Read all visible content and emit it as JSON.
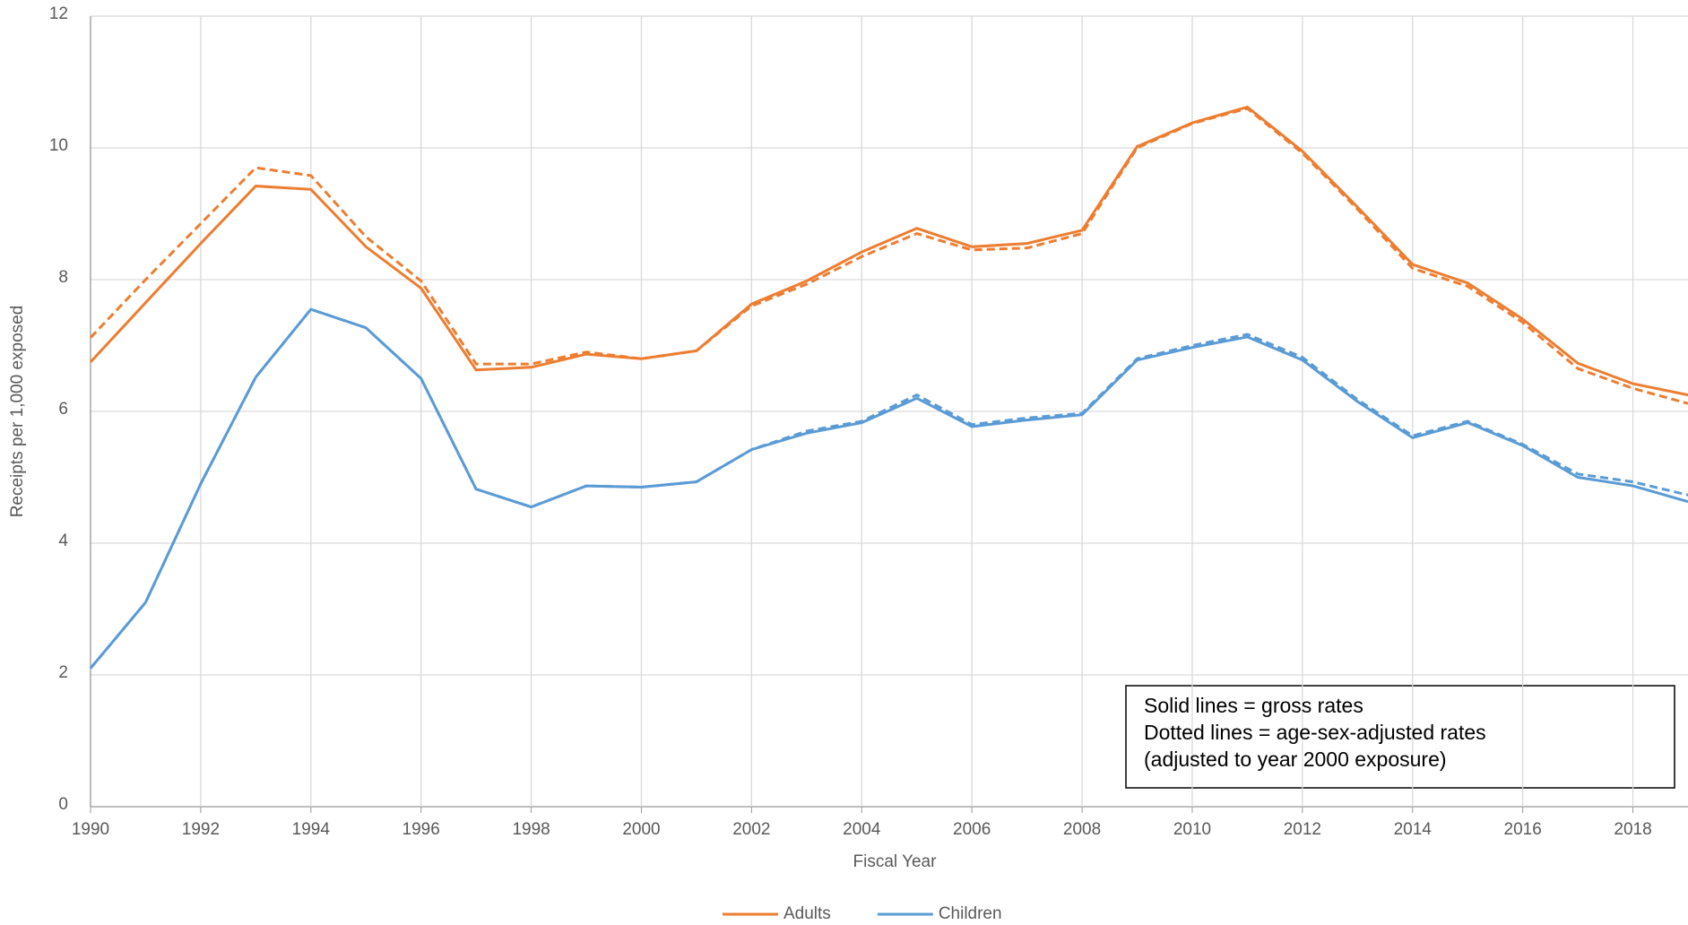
{
  "chart_data": {
    "type": "line",
    "x_label": "Fiscal Year",
    "y_label": "Receipts per 1,000 exposed",
    "x": [
      1990,
      1991,
      1992,
      1993,
      1994,
      1995,
      1996,
      1997,
      1998,
      1999,
      2000,
      2001,
      2002,
      2003,
      2004,
      2005,
      2006,
      2007,
      2008,
      2009,
      2010,
      2011,
      2012,
      2013,
      2014,
      2015,
      2016,
      2017,
      2018,
      2019
    ],
    "series": [
      {
        "name": "Adults",
        "color": "#ed7d31",
        "values": [
          6.75,
          7.65,
          8.55,
          9.42,
          9.37,
          8.5,
          7.87,
          6.63,
          6.67,
          6.87,
          6.8,
          6.92,
          7.63,
          7.98,
          8.42,
          8.78,
          8.5,
          8.55,
          8.75,
          10.02,
          10.38,
          10.62,
          9.95,
          9.1,
          8.23,
          7.95,
          7.4,
          6.73,
          6.42,
          6.25
        ],
        "adjusted_values": [
          7.12,
          8.0,
          8.85,
          9.7,
          9.58,
          8.65,
          7.98,
          6.72,
          6.72,
          6.9,
          6.8,
          6.92,
          7.6,
          7.93,
          8.35,
          8.7,
          8.45,
          8.48,
          8.7,
          10.0,
          10.37,
          10.6,
          9.92,
          9.07,
          8.17,
          7.9,
          7.35,
          6.65,
          6.35,
          6.12
        ]
      },
      {
        "name": "Children",
        "color": "#5b9bd5",
        "values": [
          2.1,
          3.1,
          4.9,
          6.52,
          7.55,
          7.27,
          6.5,
          4.82,
          4.55,
          4.87,
          4.85,
          4.93,
          5.42,
          5.67,
          5.83,
          6.2,
          5.77,
          5.87,
          5.95,
          6.78,
          6.97,
          7.13,
          6.78,
          6.15,
          5.6,
          5.83,
          5.48,
          5.0,
          4.87,
          4.63
        ],
        "adjusted_values": [
          2.1,
          3.1,
          4.9,
          6.52,
          7.55,
          7.27,
          6.5,
          4.82,
          4.55,
          4.87,
          4.85,
          4.93,
          5.42,
          5.7,
          5.85,
          6.25,
          5.8,
          5.9,
          5.97,
          6.8,
          7.0,
          7.17,
          6.82,
          6.18,
          5.63,
          5.85,
          5.5,
          5.05,
          4.93,
          4.73
        ]
      }
    ],
    "xlim": [
      1990,
      2019
    ],
    "ylim": [
      0,
      12
    ],
    "xticks": [
      1990,
      1992,
      1994,
      1996,
      1998,
      2000,
      2002,
      2004,
      2006,
      2008,
      2010,
      2012,
      2014,
      2016,
      2018
    ],
    "yticks": [
      0,
      2,
      4,
      6,
      8,
      10,
      12
    ],
    "grid": true,
    "legend": "bottom",
    "annotations": [
      "Solid lines = gross rates",
      "Dotted lines = age-sex-adjusted rates",
      "(adjusted to year 2000  exposure)"
    ]
  }
}
